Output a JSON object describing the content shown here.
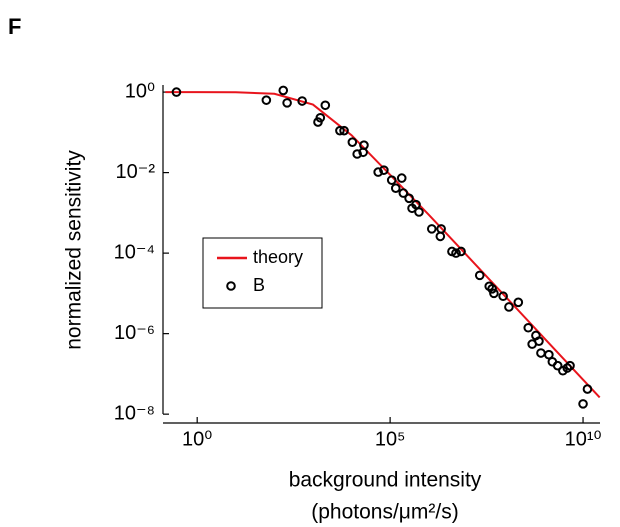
{
  "chart_data": {
    "type": "scatter",
    "panel_label": "F",
    "xlabel": [
      "background intensity",
      "(photons/μm²/s)"
    ],
    "ylabel": "normalized sensitivity",
    "xscale": "log",
    "yscale": "log",
    "xlim": [
      0.13,
      27500000000.0
    ],
    "ylim": [
      9e-09,
      1.5
    ],
    "xticks": [
      {
        "value": 1,
        "label": "10⁰"
      },
      {
        "value": 100000,
        "label": "10⁵"
      },
      {
        "value": 10000000000,
        "label": "10¹⁰"
      }
    ],
    "yticks": [
      {
        "value": 1,
        "label": "10⁰"
      },
      {
        "value": 0.01,
        "label": "10⁻²"
      },
      {
        "value": 0.0001,
        "label": "10⁻⁴"
      },
      {
        "value": 1e-06,
        "label": "10⁻⁶"
      },
      {
        "value": 1e-08,
        "label": "10⁻⁸"
      }
    ],
    "legend": "center-left",
    "series": [
      {
        "name": "theory",
        "kind": "line",
        "color": "#e8141c",
        "x": [
          0.15,
          1,
          10,
          100,
          1000,
          10000,
          100000,
          1000000,
          10000000,
          100000000,
          1000000000,
          10000000000,
          27000000000
        ],
        "values": [
          1,
          1,
          0.99,
          0.91,
          0.49,
          0.085,
          0.0088,
          0.0009,
          8.6e-05,
          8.1e-06,
          7.6e-07,
          7.2e-08,
          2.6e-08
        ]
      },
      {
        "name": "B",
        "kind": "markers",
        "color": "#000000",
        "x": [
          0.29,
          62,
          170,
          214,
          525,
          1350,
          1550,
          2090,
          5000,
          6400,
          10500,
          14000,
          21000,
          20000,
          49000,
          69000,
          110000,
          140000,
          200000,
          220000,
          310000,
          370000,
          560000,
          470000,
          1200000,
          2000000,
          2100000,
          4000000,
          5100000,
          6900000,
          21000000,
          37000000,
          44000000,
          49000000,
          85000000,
          120000000,
          210000000,
          380000000,
          480000000,
          600000000,
          720000000,
          810000000,
          1300000000,
          1600000000,
          2200000000,
          3000000000,
          3900000000,
          4600000000,
          10000000000,
          13000000000
        ],
        "values": [
          1,
          0.63,
          1.1,
          0.54,
          0.6,
          0.18,
          0.23,
          0.47,
          0.11,
          0.11,
          0.057,
          0.029,
          0.048,
          0.032,
          0.0103,
          0.0115,
          0.0065,
          0.0041,
          0.0073,
          0.0031,
          0.0023,
          0.0013,
          0.00105,
          0.0016,
          0.0004,
          0.00026,
          0.0004,
          0.00011,
          0.0001,
          0.00011,
          2.8e-05,
          1.5e-05,
          1.3e-05,
          1e-05,
          8.5e-06,
          4.6e-06,
          6e-06,
          1.4e-06,
          5.5e-07,
          9e-07,
          6.5e-07,
          3.3e-07,
          3e-07,
          2e-07,
          1.6e-07,
          1.2e-07,
          1.4e-07,
          1.6e-07,
          1.8e-08,
          4.2e-08
        ]
      }
    ]
  }
}
